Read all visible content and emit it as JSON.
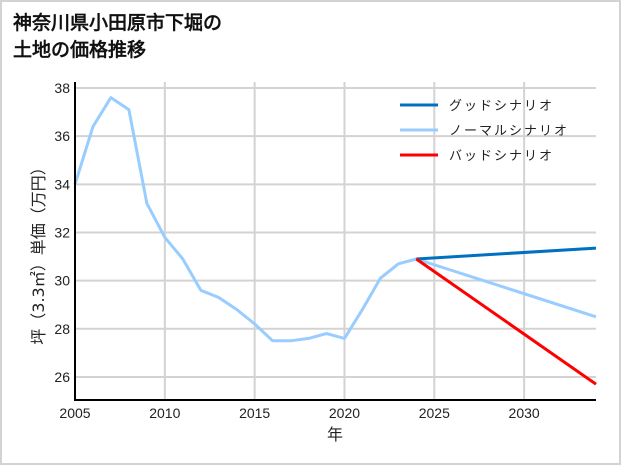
{
  "title": "神奈川県小田原市下堀の\n土地の価格推移",
  "axes": {
    "xlabel": "年",
    "ylabel": "坪（3.3㎡）単価（万円）",
    "x_ticks": [
      "2005",
      "2010",
      "2015",
      "2020",
      "2025",
      "2030"
    ],
    "y_ticks": [
      "26",
      "28",
      "30",
      "32",
      "34",
      "36",
      "38"
    ]
  },
  "legend": {
    "items": [
      {
        "label": "グッドシナリオ",
        "color": "#0070c0"
      },
      {
        "label": "ノーマルシナリオ",
        "color": "#99ccff"
      },
      {
        "label": "バッドシナリオ",
        "color": "#ff0000"
      }
    ]
  },
  "chart_data": {
    "type": "line",
    "title": "神奈川県小田原市下堀の土地の価格推移",
    "xlabel": "年",
    "ylabel": "坪（3.3㎡）単価（万円）",
    "xlim": [
      2005,
      2034
    ],
    "ylim": [
      25,
      38.1
    ],
    "grid": true,
    "legend_position": "upper right",
    "series": [
      {
        "name": "ノーマルシナリオ",
        "color": "#99ccff",
        "x": [
          2005,
          2006,
          2007,
          2008,
          2009,
          2010,
          2011,
          2012,
          2013,
          2014,
          2015,
          2016,
          2017,
          2018,
          2019,
          2020,
          2021,
          2022,
          2023,
          2024,
          2034
        ],
        "values": [
          34.0,
          36.4,
          37.6,
          37.1,
          33.2,
          31.8,
          30.9,
          29.6,
          29.3,
          28.8,
          28.2,
          27.5,
          27.5,
          27.6,
          27.8,
          27.6,
          28.8,
          30.1,
          30.7,
          30.9,
          28.5
        ]
      },
      {
        "name": "グッドシナリオ",
        "color": "#0070c0",
        "x": [
          2024,
          2034
        ],
        "values": [
          30.9,
          31.35
        ]
      },
      {
        "name": "バッドシナリオ",
        "color": "#ff0000",
        "x": [
          2024,
          2034
        ],
        "values": [
          30.9,
          25.7
        ]
      }
    ]
  }
}
